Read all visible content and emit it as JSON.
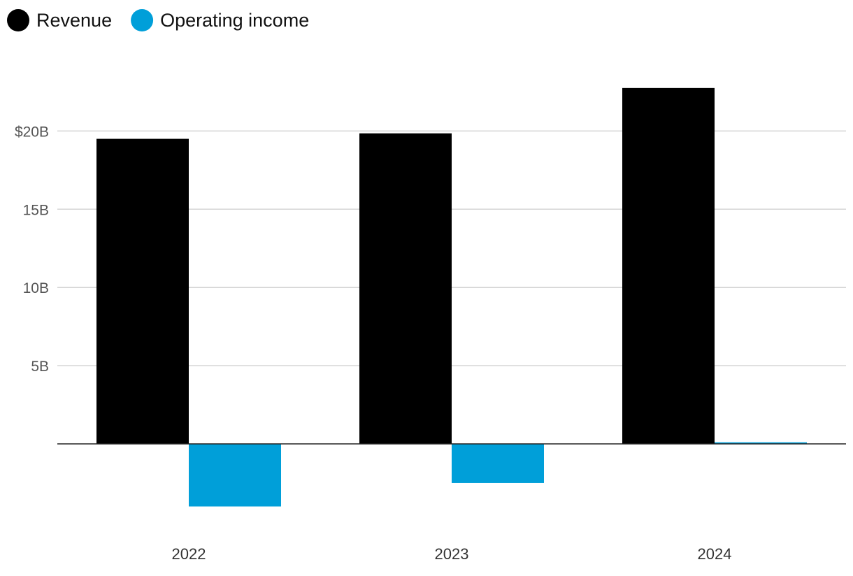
{
  "colors": {
    "revenue": "#000000",
    "operating_income": "#009fd9",
    "grid": "#d4d4d4",
    "baseline": "#222222"
  },
  "chart_data": {
    "type": "bar",
    "title": "",
    "xlabel": "",
    "ylabel": "",
    "categories": [
      "2022",
      "2023",
      "2024"
    ],
    "series": [
      {
        "name": "Revenue",
        "color": "#000000",
        "values": [
          19.5,
          19.85,
          22.75
        ]
      },
      {
        "name": "Operating income",
        "color": "#009fd9",
        "values": [
          -4.0,
          -2.5,
          0.1
        ]
      }
    ],
    "ylim": [
      -5.6,
      28.0
    ],
    "y_ticks": [
      {
        "value": 5,
        "label": "5B"
      },
      {
        "value": 10,
        "label": "10B"
      },
      {
        "value": 15,
        "label": "15B"
      },
      {
        "value": 20,
        "label": "$20B"
      }
    ],
    "grid": true,
    "legend_position": "top-left"
  }
}
